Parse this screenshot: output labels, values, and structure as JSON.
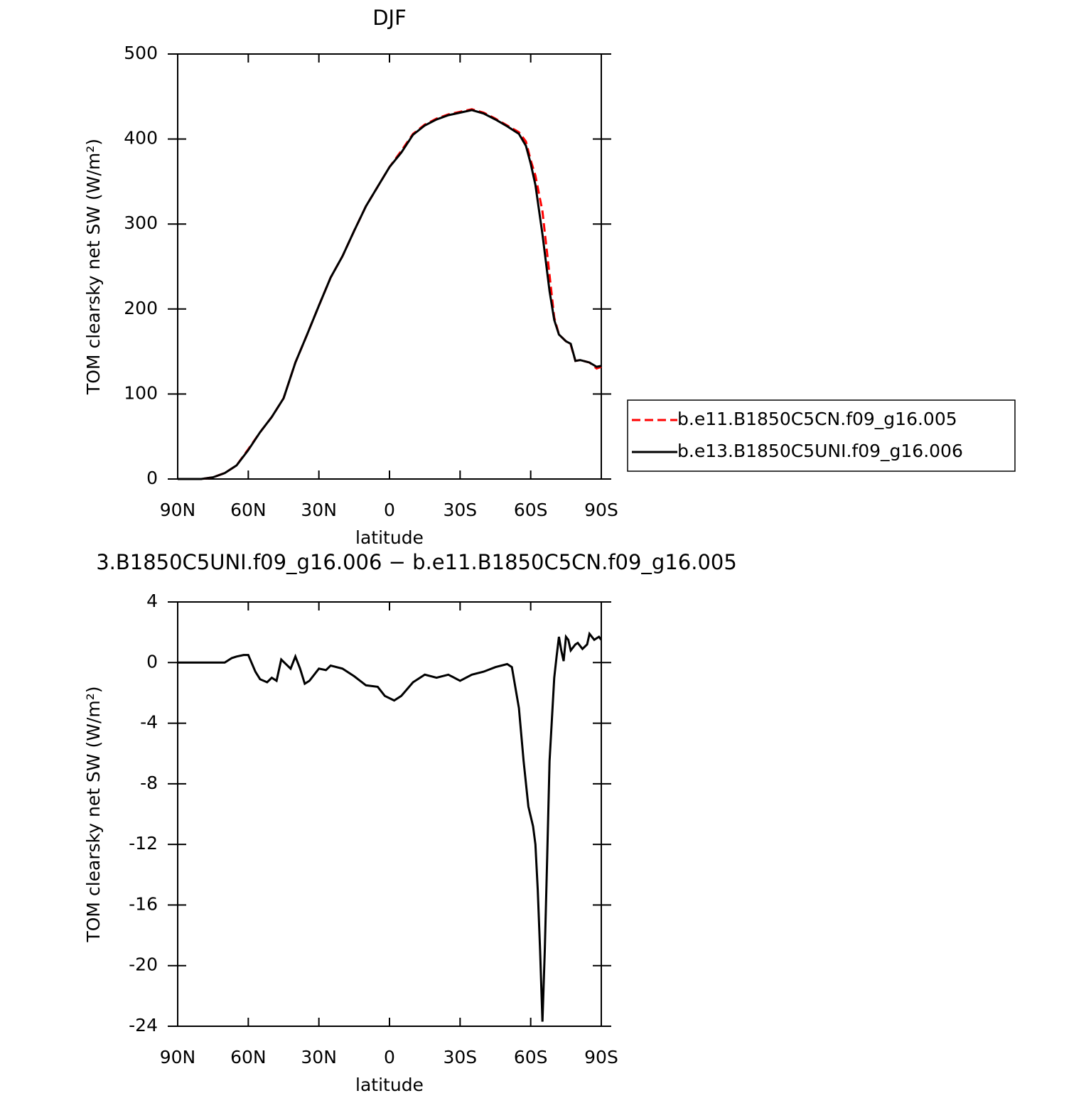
{
  "chart_data": [
    {
      "type": "line",
      "title": "DJF",
      "xlabel": "latitude",
      "ylabel": "TOM clearsky net SW (W/m²)",
      "xlim": [
        90,
        -90
      ],
      "xticks": [
        {
          "value": 90,
          "label": "90N"
        },
        {
          "value": 60,
          "label": "60N"
        },
        {
          "value": 30,
          "label": "30N"
        },
        0,
        {
          "value": -30,
          "label": "30S"
        },
        {
          "value": -60,
          "label": "60S"
        },
        {
          "value": -90,
          "label": "90S"
        }
      ],
      "ylim": [
        0,
        500
      ],
      "yticks": [
        0,
        100,
        200,
        300,
        400,
        500
      ],
      "legend": "outside right",
      "x": [
        90,
        80,
        75,
        70,
        65,
        60,
        55,
        50,
        45,
        40,
        35,
        30,
        25,
        20,
        15,
        10,
        5,
        0,
        -5,
        -10,
        -15,
        -20,
        -25,
        -30,
        -35,
        -40,
        -45,
        -50,
        -55,
        -58,
        -60,
        -62,
        -65,
        -68,
        -70,
        -72,
        -75,
        -77,
        -79,
        -81,
        -85,
        -88,
        -90
      ],
      "series": [
        {
          "name": "b.e11.B1850C5CN.f09_g16.005",
          "color": "#ff0000",
          "dash": true,
          "values": [
            0,
            0,
            2,
            7,
            16,
            35,
            55,
            73,
            95,
            137,
            170,
            204,
            237,
            262,
            292,
            321,
            344,
            367,
            386,
            406,
            417,
            424,
            429,
            432,
            435,
            431,
            424,
            416,
            408,
            397,
            375,
            357,
            315,
            240,
            190,
            170,
            162,
            158,
            139,
            140,
            137,
            130,
            132
          ]
        },
        {
          "name": "b.e13.B1850C5UNI.f09_g16.006",
          "color": "#000000",
          "dash": false,
          "values": [
            0,
            0,
            2,
            7,
            16,
            34,
            55,
            73,
            95,
            137,
            170,
            204,
            237,
            262,
            292,
            321,
            344,
            367,
            384,
            405,
            416,
            423,
            428,
            431,
            434,
            430,
            423,
            415,
            406,
            392,
            371,
            346,
            288,
            221,
            187,
            170,
            162,
            159,
            139,
            140,
            137,
            132,
            133
          ]
        }
      ]
    },
    {
      "type": "line",
      "title": "3.B1850C5UNI.f09_g16.006 − b.e11.B1850C5CN.f09_g16.005",
      "xlabel": "latitude",
      "ylabel": "TOM clearsky net SW (W/m²)",
      "xlim": [
        90,
        -90
      ],
      "xticks": [
        {
          "value": 90,
          "label": "90N"
        },
        {
          "value": 60,
          "label": "60N"
        },
        {
          "value": 30,
          "label": "30N"
        },
        0,
        {
          "value": -30,
          "label": "30S"
        },
        {
          "value": -60,
          "label": "60S"
        },
        {
          "value": -90,
          "label": "90S"
        }
      ],
      "ylim": [
        -24,
        4
      ],
      "yticks": [
        -24,
        -20,
        -16,
        -12,
        -8,
        -4,
        0,
        4
      ],
      "x": [
        90,
        80,
        70,
        67,
        65,
        62,
        60,
        57,
        55,
        52,
        50,
        48,
        46,
        44,
        42,
        40,
        38,
        36,
        34,
        30,
        27,
        25,
        20,
        15,
        10,
        5,
        2,
        -2,
        -5,
        -10,
        -15,
        -20,
        -25,
        -30,
        -35,
        -40,
        -45,
        -50,
        -52,
        -55,
        -57,
        -59,
        -61,
        -62,
        -63,
        -64,
        -65,
        -66,
        -67,
        -68,
        -70,
        -71,
        -72,
        -73,
        -74,
        -75,
        -76,
        -77,
        -79,
        -80,
        -82,
        -84,
        -85,
        -87,
        -89,
        -90
      ],
      "series": [
        {
          "name": null,
          "color": "#000000",
          "dash": false,
          "values": [
            0,
            0,
            0,
            0.3,
            0.4,
            0.5,
            0.5,
            -0.6,
            -1.1,
            -1.3,
            -1.0,
            -1.2,
            0.2,
            -0.1,
            -0.4,
            0.4,
            -0.4,
            -1.4,
            -1.2,
            -0.4,
            -0.5,
            -0.2,
            -0.4,
            -0.9,
            -1.5,
            -1.6,
            -2.2,
            -2.5,
            -2.2,
            -1.3,
            -0.8,
            -1.0,
            -0.8,
            -1.2,
            -0.8,
            -0.6,
            -0.3,
            -0.1,
            -0.3,
            -3,
            -6.5,
            -9.5,
            -10.8,
            -12,
            -15,
            -19,
            -23.7,
            -19,
            -13,
            -6.5,
            -1,
            0.4,
            1.7,
            0.8,
            0.1,
            1.7,
            1.5,
            0.8,
            1.2,
            1.3,
            0.9,
            1.2,
            1.9,
            1.5,
            1.7,
            1.5
          ]
        }
      ]
    }
  ]
}
